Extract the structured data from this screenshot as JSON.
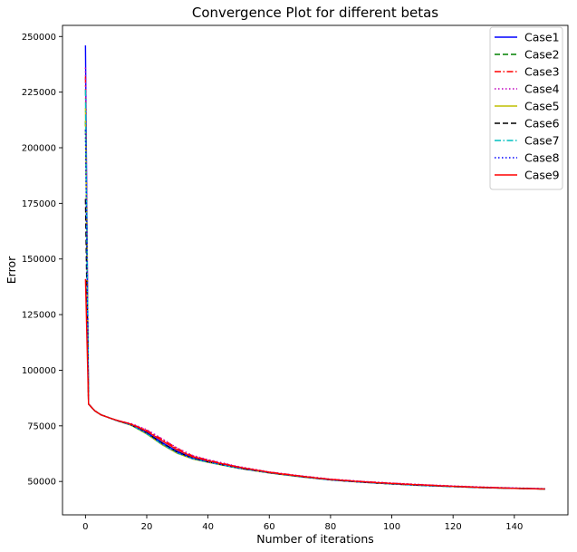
{
  "chart_data": {
    "type": "line",
    "title": "Convergence Plot for different betas",
    "xlabel": "Number of iterations",
    "ylabel": "Error",
    "xlim": [
      -7.5,
      157.5
    ],
    "ylim": [
      35000,
      255000
    ],
    "xticks": [
      0,
      20,
      40,
      60,
      80,
      100,
      120,
      140
    ],
    "xtick_labels": [
      "0",
      "20",
      "40",
      "60",
      "80",
      "100",
      "120",
      "140"
    ],
    "yticks": [
      50000,
      75000,
      100000,
      125000,
      150000,
      175000,
      200000,
      225000,
      250000
    ],
    "ytick_labels": [
      "50000",
      "75000",
      "100000",
      "125000",
      "150000",
      "175000",
      "200000",
      "225000",
      "250000"
    ],
    "grid": false,
    "legend_position": "top-right",
    "x": [
      0,
      1,
      3,
      5,
      8,
      10,
      15,
      20,
      25,
      30,
      35,
      40,
      50,
      60,
      70,
      80,
      90,
      100,
      110,
      120,
      130,
      140,
      150
    ],
    "series": [
      {
        "name": "Case1",
        "color": "#0000ff",
        "dash": "solid",
        "values": [
          246000,
          84800,
          81800,
          80000,
          78500,
          77500,
          75500,
          72000,
          67500,
          63500,
          60500,
          59000,
          56200,
          54000,
          52300,
          50800,
          49800,
          49000,
          48300,
          47800,
          47300,
          47000,
          46700
        ]
      },
      {
        "name": "Case2",
        "color": "#008000",
        "dash": "dashed",
        "values": [
          212000,
          84800,
          81800,
          80000,
          78500,
          77500,
          75300,
          71500,
          66800,
          62800,
          60200,
          58700,
          56000,
          53900,
          52200,
          50700,
          49700,
          48900,
          48200,
          47700,
          47200,
          46900,
          46600
        ]
      },
      {
        "name": "Case3",
        "color": "#ff0000",
        "dash": "dashdot",
        "values": [
          232000,
          84800,
          81800,
          80000,
          78500,
          77600,
          75800,
          73000,
          69000,
          64800,
          61500,
          59600,
          56500,
          54200,
          52500,
          51000,
          50000,
          49200,
          48500,
          47900,
          47400,
          47000,
          46700
        ]
      },
      {
        "name": "Case4",
        "color": "#bf00bf",
        "dash": "dotted",
        "values": [
          236000,
          84800,
          81800,
          80000,
          78500,
          77600,
          76000,
          73300,
          69200,
          65000,
          61700,
          59800,
          56700,
          54300,
          52600,
          51100,
          50100,
          49300,
          48600,
          48000,
          47500,
          47100,
          46800
        ]
      },
      {
        "name": "Case5",
        "color": "#bfbf00",
        "dash": "solid",
        "values": [
          218000,
          84800,
          81800,
          80000,
          78500,
          77500,
          75200,
          71300,
          66500,
          62600,
          60100,
          58600,
          55900,
          53800,
          52100,
          50700,
          49700,
          48900,
          48200,
          47700,
          47200,
          46900,
          46600
        ]
      },
      {
        "name": "Case6",
        "color": "#000000",
        "dash": "dashed",
        "values": [
          177000,
          84800,
          81800,
          80000,
          78500,
          77500,
          75400,
          71800,
          67200,
          63200,
          60400,
          58800,
          56000,
          53900,
          52200,
          50700,
          49700,
          48900,
          48200,
          47700,
          47200,
          46900,
          46600
        ]
      },
      {
        "name": "Case7",
        "color": "#00bfbf",
        "dash": "dashdot",
        "values": [
          226000,
          84800,
          81800,
          80000,
          78500,
          77500,
          75300,
          71500,
          66700,
          62800,
          60200,
          58700,
          56000,
          53900,
          52200,
          50700,
          49700,
          48900,
          48200,
          47700,
          47200,
          46900,
          46600
        ]
      },
      {
        "name": "Case8",
        "color": "#0000ff",
        "dash": "dotted",
        "values": [
          208000,
          84800,
          81800,
          80000,
          78500,
          77500,
          75400,
          71700,
          67000,
          63000,
          60300,
          58800,
          56000,
          53900,
          52200,
          50700,
          49700,
          48900,
          48200,
          47700,
          47200,
          46900,
          46600
        ]
      },
      {
        "name": "Case9",
        "color": "#ff0000",
        "dash": "solid",
        "values": [
          141000,
          84800,
          81800,
          80000,
          78500,
          77600,
          75700,
          72600,
          68300,
          64200,
          61100,
          59300,
          56400,
          54100,
          52400,
          50900,
          49900,
          49100,
          48400,
          47800,
          47300,
          46900,
          46600
        ]
      }
    ]
  }
}
